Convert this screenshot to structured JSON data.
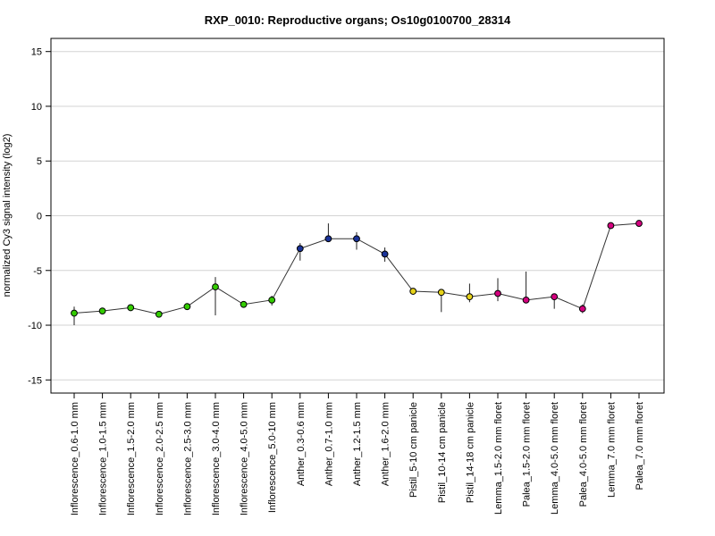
{
  "chart_data": {
    "type": "line",
    "title": "RXP_0010: Reproductive organs; Os10g0100700_28314",
    "xlabel": "",
    "ylabel": "normalized Cy3 signal intensity (log2)",
    "ylim": [
      -16.2,
      16.2
    ],
    "yticks": [
      -15,
      -10,
      -5,
      0,
      5,
      10,
      15
    ],
    "grid": true,
    "categories": [
      "Inflorescence_0.6-1.0 mm",
      "Inflorescence_1.0-1.5 mm",
      "Inflorescence_1.5-2.0 mm",
      "Inflorescence_2.0-2.5 mm",
      "Inflorescence_2.5-3.0 mm",
      "Inflorescence_3.0-4.0 mm",
      "Inflorescence_4.0-5.0 mm",
      "Inflorescence_5.0-10 mm",
      "Anther_0.3-0.6 mm",
      "Anther_0.7-1.0 mm",
      "Anther_1.2-1.5 mm",
      "Anther_1.6-2.0 mm",
      "Pistil_5-10 cm panicle",
      "Pistil_10-14 cm panicle",
      "Pistil_14-18 cm panicle",
      "Lemma_1.5-2.0 mm floret",
      "Palea_1.5-2.0 mm floret",
      "Lemma_4.0-5.0 mm floret",
      "Palea_4.0-5.0 mm floret",
      "Lemma_7.0 mm floret",
      "Palea_7.0 mm floret"
    ],
    "values": [
      -8.9,
      -8.7,
      -8.4,
      -9.0,
      -8.3,
      -6.5,
      -8.1,
      -7.7,
      -3.0,
      -2.1,
      -2.1,
      -3.5,
      -6.9,
      -7.0,
      -7.4,
      -7.1,
      -7.7,
      -7.4,
      -8.5,
      -0.9,
      -0.7
    ],
    "error_low": [
      -10.0,
      -8.7,
      -8.4,
      -9.0,
      -8.3,
      -9.1,
      -8.1,
      -8.2,
      -4.1,
      -2.1,
      -3.1,
      -4.2,
      -6.9,
      -8.8,
      -7.9,
      -7.8,
      -7.7,
      -8.5,
      -8.9,
      -0.9,
      -0.7
    ],
    "error_high": [
      -8.3,
      -8.7,
      -8.4,
      -9.0,
      -8.3,
      -5.6,
      -8.1,
      -7.3,
      -2.5,
      -0.7,
      -1.5,
      -2.9,
      -6.9,
      -7.0,
      -6.2,
      -5.7,
      -5.1,
      -7.4,
      -8.1,
      -0.9,
      -0.7
    ],
    "colors": [
      "#33cc00",
      "#33cc00",
      "#33cc00",
      "#33cc00",
      "#33cc00",
      "#33cc00",
      "#33cc00",
      "#33cc00",
      "#1a3399",
      "#1a3399",
      "#1a3399",
      "#1a3399",
      "#e6d21a",
      "#e6d21a",
      "#e6d21a",
      "#d4007f",
      "#d4007f",
      "#d4007f",
      "#d4007f",
      "#d4007f",
      "#d4007f"
    ]
  }
}
